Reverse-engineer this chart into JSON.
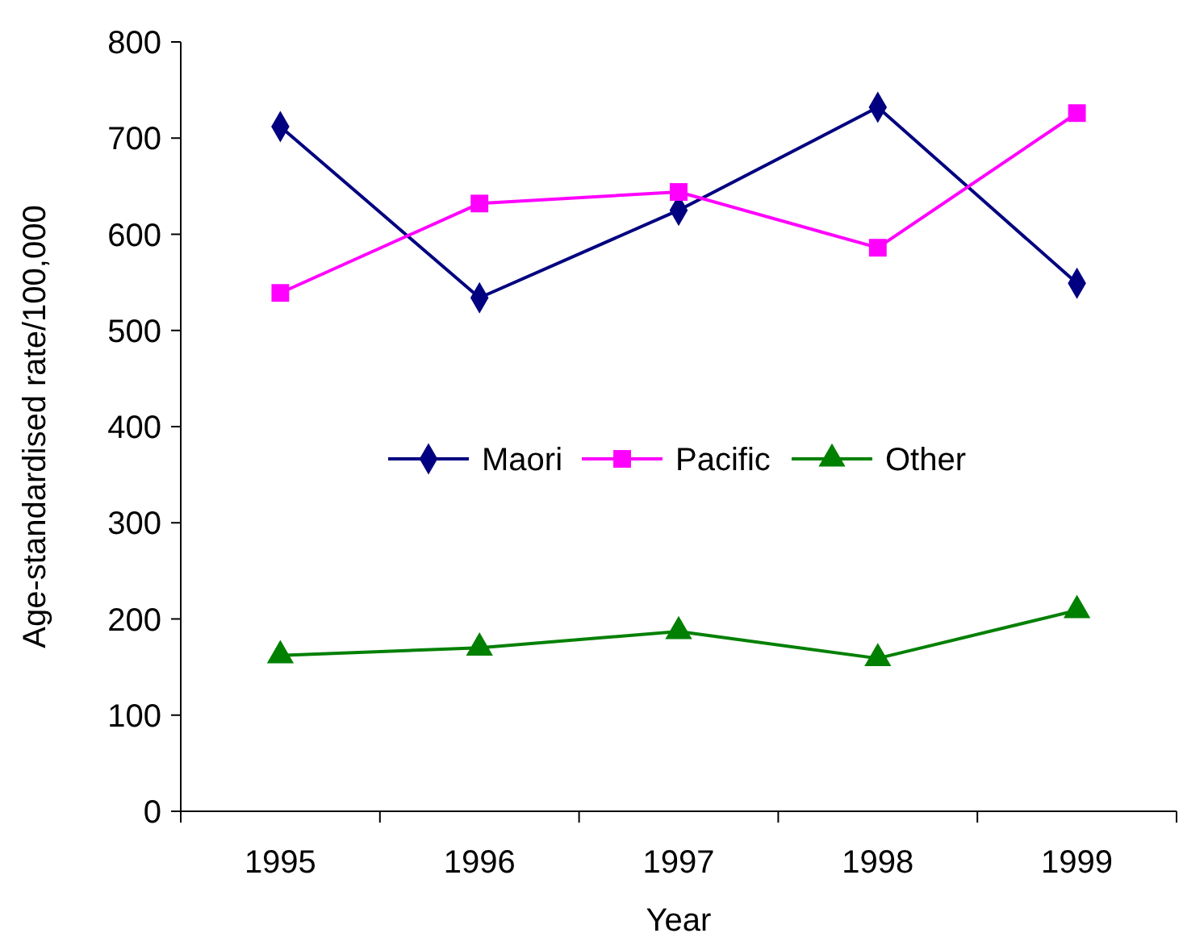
{
  "chart_data": {
    "type": "line",
    "xlabel": "Year",
    "ylabel": "Age-standardised rate/100,000",
    "categories": [
      "1995",
      "1996",
      "1997",
      "1998",
      "1999"
    ],
    "series": [
      {
        "name": "Maori",
        "color": "#000080",
        "marker": "diamond",
        "values": [
          712,
          534,
          625,
          732,
          549
        ]
      },
      {
        "name": "Pacific",
        "color": "#ff00ff",
        "marker": "square",
        "values": [
          539,
          632,
          644,
          586,
          726
        ]
      },
      {
        "name": "Other",
        "color": "#008000",
        "marker": "triangle",
        "values": [
          162,
          170,
          187,
          159,
          209
        ]
      }
    ],
    "ylim": [
      0,
      800
    ],
    "yticks": [
      0,
      100,
      200,
      300,
      400,
      500,
      600,
      700,
      800
    ],
    "grid": false,
    "legend": "center"
  }
}
